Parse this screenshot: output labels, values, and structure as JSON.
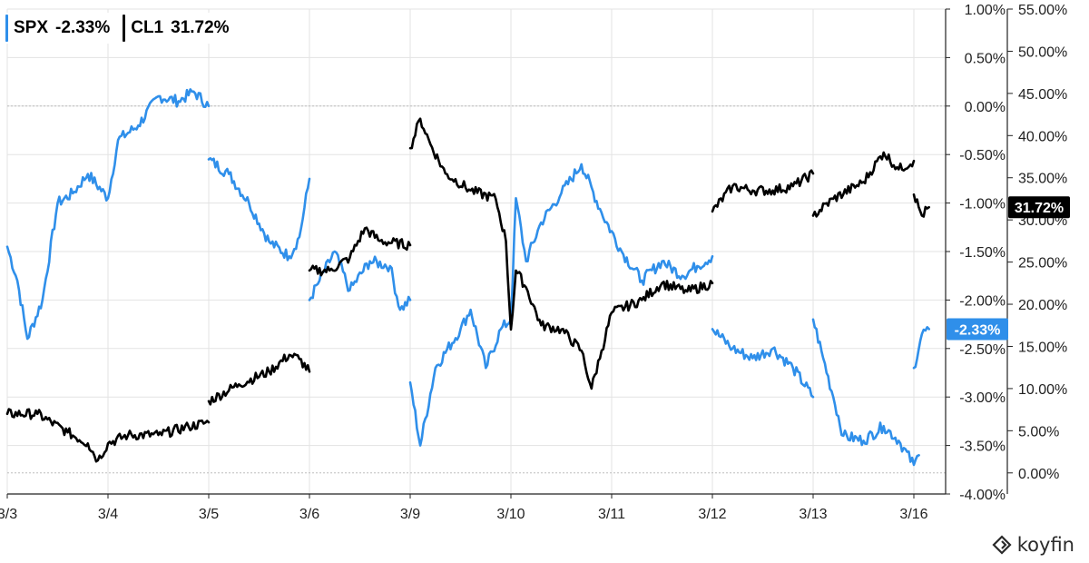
{
  "chart_data": {
    "type": "line",
    "x_ticks": [
      "3/3",
      "3/4",
      "3/5",
      "3/6",
      "3/9",
      "3/10",
      "3/11",
      "3/12",
      "3/13",
      "3/16"
    ],
    "left_axis": {
      "ticks": [
        "1.00%",
        "0.50%",
        "0.00%",
        "-0.50%",
        "-1.00%",
        "-1.50%",
        "-2.00%",
        "-2.50%",
        "-3.00%",
        "-3.50%",
        "-4.00%"
      ],
      "range": [
        -4.0,
        1.0
      ]
    },
    "right_axis": {
      "ticks": [
        "55.00%",
        "50.00%",
        "45.00%",
        "40.00%",
        "35.00%",
        "30.00%",
        "25.00%",
        "20.00%",
        "15.00%",
        "10.00%",
        "5.00%",
        "0.00%"
      ],
      "range": [
        -2.5,
        55.0
      ]
    },
    "series": [
      {
        "name": "SPX",
        "last_label": "-2.33%",
        "color": "#2f8fea",
        "axis": "left",
        "segments": [
          [
            [
              0.0,
              -1.45
            ],
            [
              0.1,
              -1.8
            ],
            [
              0.2,
              -2.4
            ],
            [
              0.35,
              -2.0
            ],
            [
              0.5,
              -1.0
            ],
            [
              0.65,
              -0.9
            ],
            [
              0.8,
              -0.7
            ],
            [
              1.0,
              -0.95
            ],
            [
              1.1,
              -0.35
            ],
            [
              1.3,
              -0.2
            ],
            [
              1.5,
              0.1
            ],
            [
              1.7,
              0.05
            ],
            [
              1.85,
              0.15
            ],
            [
              2.0,
              0.0
            ]
          ],
          [
            [
              2.0,
              -0.55
            ],
            [
              2.2,
              -0.7
            ],
            [
              2.4,
              -1.0
            ],
            [
              2.6,
              -1.4
            ],
            [
              2.8,
              -1.55
            ],
            [
              2.9,
              -1.35
            ],
            [
              3.0,
              -0.75
            ]
          ],
          [
            [
              3.0,
              -2.0
            ],
            [
              3.1,
              -1.8
            ],
            [
              3.25,
              -1.5
            ],
            [
              3.4,
              -1.9
            ],
            [
              3.6,
              -1.6
            ],
            [
              3.8,
              -1.65
            ],
            [
              3.9,
              -2.1
            ],
            [
              4.0,
              -2.0
            ]
          ],
          [
            [
              4.0,
              -2.85
            ],
            [
              4.1,
              -3.5
            ],
            [
              4.25,
              -2.7
            ],
            [
              4.5,
              -2.3
            ],
            [
              4.6,
              -2.1
            ],
            [
              4.75,
              -2.7
            ],
            [
              4.9,
              -2.3
            ],
            [
              5.0,
              -2.2
            ],
            [
              5.05,
              -0.95
            ],
            [
              5.15,
              -1.6
            ],
            [
              5.3,
              -1.2
            ],
            [
              5.5,
              -0.9
            ],
            [
              5.7,
              -0.6
            ],
            [
              5.9,
              -1.1
            ],
            [
              6.1,
              -1.5
            ],
            [
              6.3,
              -1.8
            ],
            [
              6.5,
              -1.6
            ],
            [
              6.7,
              -1.75
            ],
            [
              6.85,
              -1.65
            ],
            [
              7.0,
              -1.55
            ]
          ],
          [
            [
              7.0,
              -2.3
            ],
            [
              7.2,
              -2.5
            ],
            [
              7.4,
              -2.6
            ],
            [
              7.6,
              -2.5
            ],
            [
              7.8,
              -2.7
            ],
            [
              8.0,
              -3.0
            ]
          ],
          [
            [
              8.0,
              -2.2
            ],
            [
              8.1,
              -2.6
            ],
            [
              8.2,
              -3.0
            ],
            [
              8.3,
              -3.4
            ],
            [
              8.5,
              -3.45
            ],
            [
              8.7,
              -3.3
            ],
            [
              8.85,
              -3.45
            ],
            [
              9.0,
              -3.7
            ],
            [
              9.05,
              -3.6
            ]
          ],
          [
            [
              9.0,
              -2.7
            ],
            [
              9.08,
              -2.35
            ],
            [
              9.15,
              -2.3
            ]
          ]
        ]
      },
      {
        "name": "CL1",
        "last_label": "31.72%",
        "color": "#000000",
        "axis": "right",
        "segments": [
          [
            [
              0.0,
              7.0
            ],
            [
              0.3,
              7.0
            ],
            [
              0.6,
              4.8
            ],
            [
              0.8,
              3.5
            ],
            [
              0.9,
              1.5
            ],
            [
              1.0,
              3.5
            ],
            [
              1.2,
              4.5
            ],
            [
              1.5,
              4.5
            ],
            [
              1.8,
              5.5
            ],
            [
              2.0,
              6.0
            ]
          ],
          [
            [
              2.0,
              8.5
            ],
            [
              2.3,
              10.5
            ],
            [
              2.6,
              12.0
            ],
            [
              2.8,
              14.0
            ],
            [
              2.9,
              13.5
            ],
            [
              3.0,
              12.0
            ]
          ],
          [
            [
              3.0,
              24.0
            ],
            [
              3.2,
              24.0
            ],
            [
              3.4,
              25.5
            ],
            [
              3.55,
              29.0
            ],
            [
              3.7,
              27.5
            ],
            [
              4.0,
              27.0
            ]
          ],
          [
            [
              4.0,
              38.5
            ],
            [
              4.1,
              42.0
            ],
            [
              4.2,
              39.0
            ],
            [
              4.35,
              35.5
            ],
            [
              4.6,
              33.5
            ],
            [
              4.85,
              32.5
            ],
            [
              4.95,
              27.5
            ],
            [
              5.0,
              17.0
            ],
            [
              5.05,
              24.0
            ],
            [
              5.15,
              22.0
            ],
            [
              5.3,
              17.5
            ],
            [
              5.5,
              17.0
            ],
            [
              5.7,
              14.5
            ],
            [
              5.8,
              10.0
            ],
            [
              5.9,
              14.5
            ],
            [
              6.0,
              19.0
            ],
            [
              6.3,
              20.5
            ],
            [
              6.5,
              22.5
            ],
            [
              6.75,
              21.5
            ],
            [
              7.0,
              22.5
            ]
          ],
          [
            [
              7.0,
              31.0
            ],
            [
              7.2,
              34.0
            ],
            [
              7.4,
              33.5
            ],
            [
              7.6,
              33.5
            ],
            [
              7.8,
              34.0
            ],
            [
              8.0,
              35.5
            ]
          ],
          [
            [
              8.0,
              30.5
            ],
            [
              8.2,
              32.5
            ],
            [
              8.5,
              34.5
            ],
            [
              8.7,
              38.0
            ],
            [
              8.85,
              36.0
            ],
            [
              9.0,
              37.0
            ]
          ],
          [
            [
              9.0,
              33.0
            ],
            [
              9.08,
              30.5
            ],
            [
              9.15,
              31.5
            ]
          ]
        ]
      }
    ],
    "grid": true,
    "legend_position": "top-left"
  },
  "legend": [
    {
      "name": "SPX",
      "value": "-2.33%",
      "color": "#2f8fea"
    },
    {
      "name": "CL1",
      "value": "31.72%",
      "color": "#111111"
    }
  ],
  "brand": {
    "name": "koyfin",
    "icon": "koyfin-logo-icon"
  }
}
